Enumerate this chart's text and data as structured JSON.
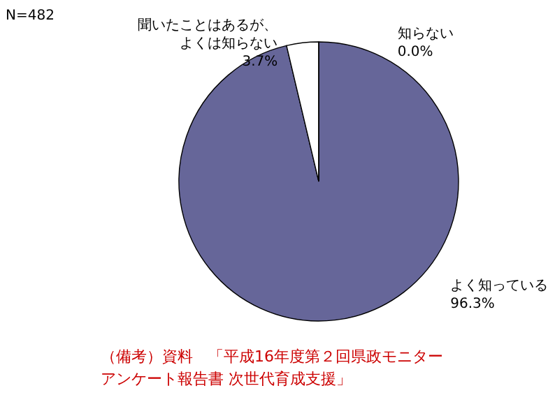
{
  "chart_data": {
    "type": "pie",
    "categories": [
      "よく知っている",
      "聞いたことはあるが、よくは知らない",
      "知らない"
    ],
    "values": [
      96.3,
      3.7,
      0.0
    ],
    "colors": [
      "#666699",
      "#ffffff",
      "#ffffff"
    ],
    "value_labels": [
      "96.3%",
      "3.7%",
      "0.0%"
    ],
    "annotations": [
      "N=482",
      "（備考）資料　「平成16年度第２回県政モニターアンケート報告書 次世代育成支援」"
    ]
  }
}
